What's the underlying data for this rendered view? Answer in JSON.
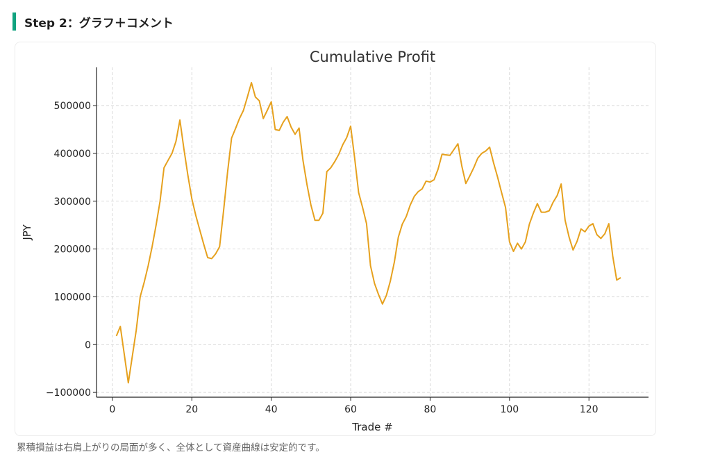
{
  "section": {
    "heading": "Step 2：グラフ＋コメント",
    "accent_color": "#10a37f"
  },
  "caption": "累積損益は右肩上がりの局面が多く、全体として資産曲線は安定的です。",
  "chart_data": {
    "type": "line",
    "title": "Cumulative Profit",
    "xlabel": "Trade #",
    "ylabel": "JPY",
    "xlim": [
      -4,
      135
    ],
    "ylim": [
      -110000,
      580000
    ],
    "xticks": [
      0,
      20,
      40,
      60,
      80,
      100,
      120
    ],
    "yticks": [
      -100000,
      0,
      100000,
      200000,
      300000,
      400000,
      500000
    ],
    "xtick_labels": [
      "0",
      "20",
      "40",
      "60",
      "80",
      "100",
      "120"
    ],
    "ytick_labels": [
      "−100000",
      "0",
      "100000",
      "200000",
      "300000",
      "400000",
      "500000"
    ],
    "grid": true,
    "line_color": "#e6a11e",
    "series": [
      {
        "x": [
          1,
          2,
          4,
          6,
          7,
          8,
          9,
          10,
          11,
          12,
          13,
          14,
          15,
          16,
          17,
          18,
          19,
          20,
          21,
          22,
          23,
          24,
          25,
          26,
          27,
          28,
          29,
          30,
          31,
          32,
          33,
          34,
          35,
          36,
          37,
          38,
          39,
          40,
          41,
          42,
          43,
          44,
          45,
          46,
          47,
          48,
          49,
          50,
          51,
          52,
          53,
          54,
          55,
          56,
          57,
          58,
          59,
          60,
          61,
          62,
          63,
          64,
          65,
          66,
          67,
          68,
          69,
          70,
          71,
          72,
          73,
          74,
          75,
          76,
          77,
          78,
          79,
          80,
          81,
          82,
          83,
          84,
          85,
          86,
          87,
          88,
          89,
          90,
          91,
          92,
          93,
          94,
          95,
          96,
          97,
          98,
          99,
          100,
          101,
          102,
          103,
          104,
          105,
          106,
          107,
          108,
          109,
          110,
          111,
          112,
          113,
          114,
          115,
          116,
          117,
          118,
          119,
          120,
          121,
          122,
          123,
          124,
          125,
          126,
          127,
          128
        ],
        "values": [
          18000,
          38000,
          -80000,
          30000,
          100000,
          130000,
          165000,
          205000,
          250000,
          300000,
          370000,
          385000,
          400000,
          425000,
          470000,
          410000,
          355000,
          305000,
          270000,
          240000,
          210000,
          182000,
          180000,
          190000,
          205000,
          280000,
          360000,
          432000,
          452000,
          473000,
          490000,
          518000,
          548000,
          518000,
          510000,
          473000,
          490000,
          508000,
          450000,
          448000,
          465000,
          477000,
          455000,
          440000,
          453000,
          385000,
          335000,
          292000,
          260000,
          260000,
          275000,
          362000,
          370000,
          383000,
          398000,
          418000,
          433000,
          457000,
          390000,
          318000,
          287000,
          253000,
          165000,
          128000,
          105000,
          85000,
          103000,
          133000,
          173000,
          225000,
          252000,
          268000,
          292000,
          310000,
          320000,
          326000,
          342000,
          340000,
          345000,
          367000,
          398000,
          397000,
          396000,
          408000,
          420000,
          373000,
          337000,
          353000,
          370000,
          390000,
          400000,
          405000,
          413000,
          380000,
          350000,
          318000,
          287000,
          215000,
          195000,
          212000,
          200000,
          215000,
          252000,
          275000,
          295000,
          277000,
          277000,
          280000,
          298000,
          312000,
          336000,
          260000,
          225000,
          198000,
          216000,
          242000,
          236000,
          248000,
          253000,
          230000,
          222000,
          232000,
          253000,
          185000,
          135000,
          140000
        ]
      }
    ]
  }
}
